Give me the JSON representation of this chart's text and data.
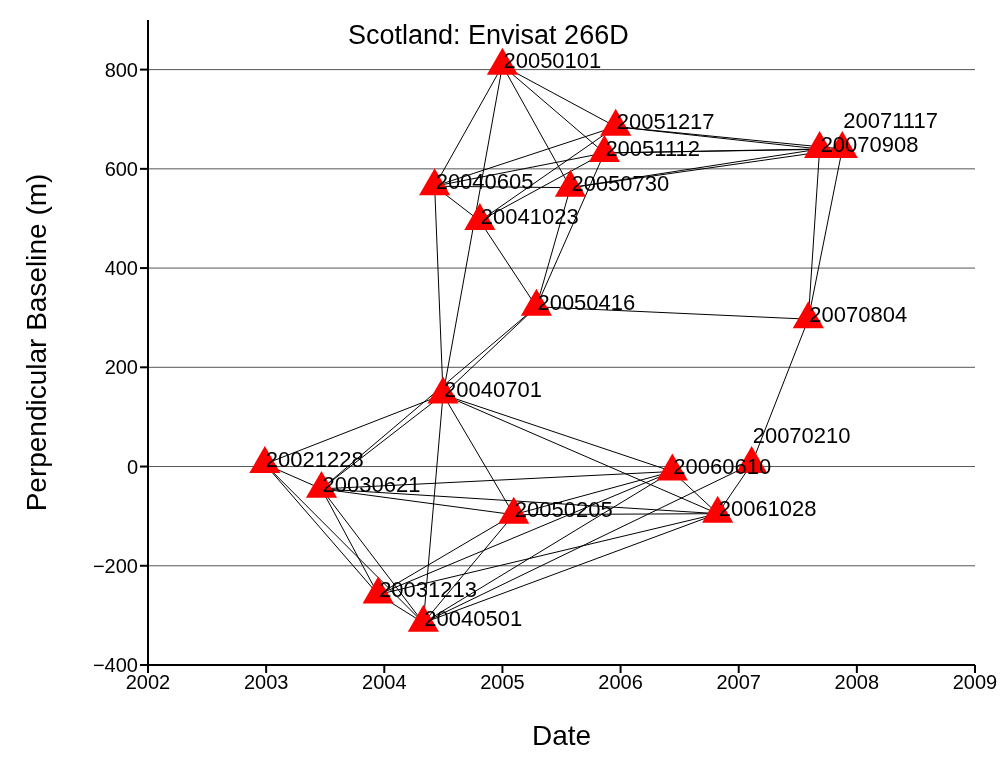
{
  "chart_data": {
    "type": "scatter",
    "title": "Scotland: Envisat 266D",
    "xlabel": "Date",
    "ylabel": "Perpendicular Baseline (m)",
    "xlim": [
      "2002",
      "2009"
    ],
    "xticks": [
      "2002",
      "2003",
      "2004",
      "2005",
      "2006",
      "2007",
      "2008",
      "2009"
    ],
    "ylim": [
      -400,
      900
    ],
    "yticks": [
      -400,
      -200,
      0,
      200,
      400,
      600,
      800
    ],
    "grid": "y",
    "annotations": [
      {
        "text": "20021228",
        "x": "2002-12-28",
        "y": 5
      },
      {
        "text": "20030621",
        "x": "2003-06-21",
        "y": -45
      },
      {
        "text": "20031213",
        "x": "2003-12-13",
        "y": -258
      },
      {
        "text": "20040501",
        "x": "2004-05-01",
        "y": -315
      },
      {
        "text": "20040605",
        "x": "2004-06-05",
        "y": 565
      },
      {
        "text": "20040701",
        "x": "2004-07-01",
        "y": 145
      },
      {
        "text": "20041023",
        "x": "2004-10-23",
        "y": 495
      },
      {
        "text": "20050101",
        "x": "2005-01-01",
        "y": 808
      },
      {
        "text": "20050205",
        "x": "2005-02-05",
        "y": -97
      },
      {
        "text": "20050416",
        "x": "2005-04-16",
        "y": 322
      },
      {
        "text": "20050730",
        "x": "2005-07-30",
        "y": 562
      },
      {
        "text": "20051112",
        "x": "2005-11-12",
        "y": 632
      },
      {
        "text": "20051217",
        "x": "2005-12-17",
        "y": 685
      },
      {
        "text": "20060610",
        "x": "2006-06-10",
        "y": -10
      },
      {
        "text": "20061028",
        "x": "2006-10-28",
        "y": -95
      },
      {
        "text": "20070210",
        "x": "2007-02-10",
        "y": 5
      },
      {
        "text": "20070804",
        "x": "2007-08-04",
        "y": 297
      },
      {
        "text": "20070908",
        "x": "2007-09-08",
        "y": 640
      },
      {
        "text": "20071117",
        "x": "2007-11-17",
        "y": 640
      }
    ],
    "series": [
      {
        "type": "line",
        "color": "#000000",
        "x": [
          "2002-12-28",
          "2003-06-21"
        ],
        "values": [
          5,
          -45
        ]
      },
      {
        "type": "line",
        "color": "#000000",
        "x": [
          "2002-12-28",
          "2003-12-13"
        ],
        "values": [
          5,
          -258
        ]
      },
      {
        "type": "line",
        "color": "#000000",
        "x": [
          "2002-12-28",
          "2004-05-01"
        ],
        "values": [
          5,
          -315
        ]
      },
      {
        "type": "line",
        "color": "#000000",
        "x": [
          "2002-12-28",
          "2004-07-01"
        ],
        "values": [
          5,
          145
        ]
      },
      {
        "type": "line",
        "color": "#000000",
        "x": [
          "2003-06-21",
          "2003-12-13"
        ],
        "values": [
          -45,
          -258
        ]
      },
      {
        "type": "line",
        "color": "#000000",
        "x": [
          "2003-06-21",
          "2004-05-01"
        ],
        "values": [
          -45,
          -315
        ]
      },
      {
        "type": "line",
        "color": "#000000",
        "x": [
          "2003-06-21",
          "2004-07-01"
        ],
        "values": [
          -45,
          145
        ]
      },
      {
        "type": "line",
        "color": "#000000",
        "x": [
          "2003-06-21",
          "2005-04-16"
        ],
        "values": [
          -45,
          322
        ]
      },
      {
        "type": "line",
        "color": "#000000",
        "x": [
          "2003-06-21",
          "2005-02-05"
        ],
        "values": [
          -45,
          -97
        ]
      },
      {
        "type": "line",
        "color": "#000000",
        "x": [
          "2003-06-21",
          "2006-10-28"
        ],
        "values": [
          -45,
          -95
        ]
      },
      {
        "type": "line",
        "color": "#000000",
        "x": [
          "2003-06-21",
          "2006-06-10"
        ],
        "values": [
          -45,
          -10
        ]
      },
      {
        "type": "line",
        "color": "#000000",
        "x": [
          "2003-12-13",
          "2004-05-01"
        ],
        "values": [
          -258,
          -315
        ]
      },
      {
        "type": "line",
        "color": "#000000",
        "x": [
          "2003-12-13",
          "2005-02-05"
        ],
        "values": [
          -258,
          -97
        ]
      },
      {
        "type": "line",
        "color": "#000000",
        "x": [
          "2003-12-13",
          "2006-10-28"
        ],
        "values": [
          -258,
          -95
        ]
      },
      {
        "type": "line",
        "color": "#000000",
        "x": [
          "2003-12-13",
          "2006-06-10"
        ],
        "values": [
          -258,
          -10
        ]
      },
      {
        "type": "line",
        "color": "#000000",
        "x": [
          "2004-05-01",
          "2004-07-01"
        ],
        "values": [
          -315,
          145
        ]
      },
      {
        "type": "line",
        "color": "#000000",
        "x": [
          "2004-05-01",
          "2005-02-05"
        ],
        "values": [
          -315,
          -97
        ]
      },
      {
        "type": "line",
        "color": "#000000",
        "x": [
          "2004-05-01",
          "2006-06-10"
        ],
        "values": [
          -315,
          -10
        ]
      },
      {
        "type": "line",
        "color": "#000000",
        "x": [
          "2004-05-01",
          "2006-10-28"
        ],
        "values": [
          -315,
          -95
        ]
      },
      {
        "type": "line",
        "color": "#000000",
        "x": [
          "2004-05-01",
          "2007-02-10"
        ],
        "values": [
          -315,
          5
        ]
      },
      {
        "type": "line",
        "color": "#000000",
        "x": [
          "2004-06-05",
          "2004-07-01"
        ],
        "values": [
          565,
          145
        ]
      },
      {
        "type": "line",
        "color": "#000000",
        "x": [
          "2004-06-05",
          "2005-01-01"
        ],
        "values": [
          565,
          808
        ]
      },
      {
        "type": "line",
        "color": "#000000",
        "x": [
          "2004-06-05",
          "2004-10-23"
        ],
        "values": [
          565,
          495
        ]
      },
      {
        "type": "line",
        "color": "#000000",
        "x": [
          "2004-06-05",
          "2005-07-30"
        ],
        "values": [
          565,
          562
        ]
      },
      {
        "type": "line",
        "color": "#000000",
        "x": [
          "2004-06-05",
          "2005-11-12"
        ],
        "values": [
          565,
          632
        ]
      },
      {
        "type": "line",
        "color": "#000000",
        "x": [
          "2004-06-05",
          "2005-12-17"
        ],
        "values": [
          565,
          685
        ]
      },
      {
        "type": "line",
        "color": "#000000",
        "x": [
          "2004-07-01",
          "2005-01-01"
        ],
        "values": [
          145,
          808
        ]
      },
      {
        "type": "line",
        "color": "#000000",
        "x": [
          "2004-07-01",
          "2005-04-16"
        ],
        "values": [
          145,
          322
        ]
      },
      {
        "type": "line",
        "color": "#000000",
        "x": [
          "2004-07-01",
          "2005-02-05"
        ],
        "values": [
          145,
          -97
        ]
      },
      {
        "type": "line",
        "color": "#000000",
        "x": [
          "2004-07-01",
          "2006-06-10"
        ],
        "values": [
          145,
          -10
        ]
      },
      {
        "type": "line",
        "color": "#000000",
        "x": [
          "2004-07-01",
          "2006-10-28"
        ],
        "values": [
          145,
          -95
        ]
      },
      {
        "type": "line",
        "color": "#000000",
        "x": [
          "2004-10-23",
          "2005-04-16"
        ],
        "values": [
          495,
          322
        ]
      },
      {
        "type": "line",
        "color": "#000000",
        "x": [
          "2004-10-23",
          "2005-11-12"
        ],
        "values": [
          495,
          632
        ]
      },
      {
        "type": "line",
        "color": "#000000",
        "x": [
          "2004-10-23",
          "2005-12-17"
        ],
        "values": [
          495,
          685
        ]
      },
      {
        "type": "line",
        "color": "#000000",
        "x": [
          "2005-01-01",
          "2005-07-30"
        ],
        "values": [
          808,
          562
        ]
      },
      {
        "type": "line",
        "color": "#000000",
        "x": [
          "2005-01-01",
          "2005-11-12"
        ],
        "values": [
          808,
          632
        ]
      },
      {
        "type": "line",
        "color": "#000000",
        "x": [
          "2005-01-01",
          "2005-12-17"
        ],
        "values": [
          808,
          685
        ]
      },
      {
        "type": "line",
        "color": "#000000",
        "x": [
          "2005-04-16",
          "2005-07-30"
        ],
        "values": [
          322,
          562
        ]
      },
      {
        "type": "line",
        "color": "#000000",
        "x": [
          "2005-04-16",
          "2005-11-12"
        ],
        "values": [
          322,
          632
        ]
      },
      {
        "type": "line",
        "color": "#000000",
        "x": [
          "2005-04-16",
          "2007-08-04"
        ],
        "values": [
          322,
          297
        ]
      },
      {
        "type": "line",
        "color": "#000000",
        "x": [
          "2005-07-30",
          "2007-09-08"
        ],
        "values": [
          562,
          640
        ]
      },
      {
        "type": "line",
        "color": "#000000",
        "x": [
          "2005-07-30",
          "2007-11-17"
        ],
        "values": [
          562,
          640
        ]
      },
      {
        "type": "line",
        "color": "#000000",
        "x": [
          "2005-11-12",
          "2007-09-08"
        ],
        "values": [
          632,
          640
        ]
      },
      {
        "type": "line",
        "color": "#000000",
        "x": [
          "2005-11-12",
          "2007-11-17"
        ],
        "values": [
          632,
          640
        ]
      },
      {
        "type": "line",
        "color": "#000000",
        "x": [
          "2005-12-17",
          "2007-09-08"
        ],
        "values": [
          685,
          640
        ]
      },
      {
        "type": "line",
        "color": "#000000",
        "x": [
          "2005-12-17",
          "2007-11-17"
        ],
        "values": [
          685,
          640
        ]
      },
      {
        "type": "line",
        "color": "#000000",
        "x": [
          "2007-08-04",
          "2007-09-08"
        ],
        "values": [
          297,
          640
        ]
      },
      {
        "type": "line",
        "color": "#000000",
        "x": [
          "2007-08-04",
          "2007-11-17"
        ],
        "values": [
          297,
          640
        ]
      },
      {
        "type": "line",
        "color": "#000000",
        "x": [
          "2007-02-10",
          "2007-08-04"
        ],
        "values": [
          5,
          297
        ]
      },
      {
        "type": "line",
        "color": "#000000",
        "x": [
          "2006-10-28",
          "2007-02-10"
        ],
        "values": [
          -95,
          5
        ]
      },
      {
        "type": "line",
        "color": "#000000",
        "x": [
          "2006-06-10",
          "2006-10-28"
        ],
        "values": [
          -10,
          -95
        ]
      },
      {
        "type": "line",
        "color": "#000000",
        "x": [
          "2005-02-05",
          "2006-10-28"
        ],
        "values": [
          -97,
          -95
        ]
      },
      {
        "type": "line",
        "color": "#000000",
        "x": [
          "2005-02-05",
          "2006-06-10"
        ],
        "values": [
          -97,
          -10
        ]
      },
      {
        "type": "scatter",
        "marker": "triangle",
        "color": "#ff0000",
        "x": [
          "2002-12-28",
          "2003-06-21",
          "2003-12-13",
          "2004-05-01",
          "2004-06-05",
          "2004-07-01",
          "2004-10-23",
          "2005-01-01",
          "2005-02-05",
          "2005-04-16",
          "2005-07-30",
          "2005-11-12",
          "2005-12-17",
          "2006-06-10",
          "2006-10-28",
          "2007-02-10",
          "2007-08-04",
          "2007-09-08",
          "2007-11-17"
        ],
        "values": [
          5,
          -45,
          -258,
          -315,
          565,
          145,
          495,
          808,
          -97,
          322,
          562,
          632,
          685,
          -10,
          -95,
          5,
          297,
          640,
          640
        ]
      }
    ]
  }
}
